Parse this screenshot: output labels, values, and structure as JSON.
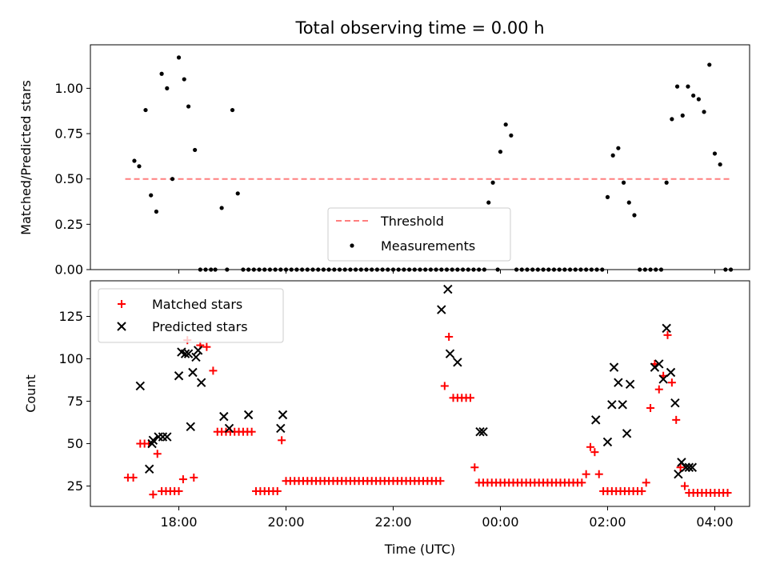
{
  "chart_data": [
    {
      "type": "scatter",
      "panel": "top",
      "title": "Total observing time = 0.00 h",
      "xlabel": "",
      "ylabel": "Matched/Predicted stars",
      "ylim": [
        0,
        1.24
      ],
      "yticks": [
        "0.00",
        "0.25",
        "0.50",
        "0.75",
        "1.00"
      ],
      "legend": {
        "placement": "lower-center",
        "entries": [
          "Threshold",
          "Measurements"
        ]
      },
      "threshold": {
        "name": "Threshold",
        "value": 0.5,
        "color": "#ff7f7f",
        "style": "dashed"
      },
      "series": [
        {
          "name": "Measurements",
          "marker": "dot",
          "color": "#000000",
          "x": [
            -0.83,
            -0.74,
            -0.62,
            -0.52,
            -0.42,
            -0.32,
            -0.22,
            -0.12,
            0.0,
            0.1,
            0.18,
            0.3,
            0.4,
            0.5,
            0.6,
            0.68,
            0.8,
            0.9,
            1.0,
            1.1,
            1.2,
            1.3,
            1.4,
            1.5,
            1.6,
            1.7,
            1.8,
            1.9,
            2.0,
            2.1,
            2.2,
            2.3,
            2.4,
            2.5,
            2.6,
            2.7,
            2.8,
            2.9,
            3.0,
            3.1,
            3.2,
            3.3,
            3.4,
            3.5,
            3.6,
            3.7,
            3.8,
            3.9,
            4.0,
            4.1,
            4.2,
            4.3,
            4.4,
            4.5,
            4.6,
            4.7,
            4.8,
            4.9,
            5.0,
            5.1,
            5.2,
            5.3,
            5.4,
            5.5,
            5.6,
            5.7,
            5.78,
            5.86,
            5.95,
            6.0,
            6.1,
            6.2,
            6.3,
            6.4,
            6.5,
            6.6,
            6.7,
            6.8,
            6.9,
            7.0,
            7.1,
            7.2,
            7.3,
            7.4,
            7.5,
            7.6,
            7.7,
            7.8,
            7.9,
            8.0,
            8.1,
            8.2,
            8.3,
            8.4,
            8.5,
            8.6,
            8.7,
            8.8,
            8.9,
            9.0,
            9.1,
            9.2,
            9.3,
            9.4,
            9.5,
            9.6,
            9.7,
            9.8,
            9.9,
            10.0,
            10.1,
            10.2,
            10.3
          ],
          "y": [
            0.6,
            0.57,
            0.88,
            0.41,
            0.32,
            1.08,
            1.0,
            0.5,
            1.17,
            1.05,
            0.9,
            0.66,
            0.0,
            0.0,
            0.0,
            0.0,
            0.34,
            0.0,
            0.88,
            0.42,
            0.0,
            0.0,
            0.0,
            0.0,
            0.0,
            0.0,
            0.0,
            0.0,
            0.0,
            0.0,
            0.0,
            0.0,
            0.0,
            0.0,
            0.0,
            0.0,
            0.0,
            0.0,
            0.0,
            0.0,
            0.0,
            0.0,
            0.0,
            0.0,
            0.0,
            0.0,
            0.0,
            0.0,
            0.0,
            0.0,
            0.0,
            0.0,
            0.0,
            0.0,
            0.0,
            0.0,
            0.0,
            0.0,
            0.0,
            0.0,
            0.0,
            0.0,
            0.0,
            0.0,
            0.0,
            0.0,
            0.37,
            0.48,
            0.0,
            0.65,
            0.8,
            0.74,
            0.0,
            0.0,
            0.0,
            0.0,
            0.0,
            0.0,
            0.0,
            0.0,
            0.0,
            0.0,
            0.0,
            0.0,
            0.0,
            0.0,
            0.0,
            0.0,
            0.0,
            0.4,
            0.63,
            0.67,
            0.48,
            0.37,
            0.3,
            0.0,
            0.0,
            0.0,
            0.0,
            0.0,
            0.48,
            0.83,
            1.01,
            0.85,
            1.01,
            0.96,
            0.94,
            0.87,
            1.13,
            0.64,
            0.58,
            0.0,
            0.0
          ]
        }
      ]
    },
    {
      "type": "scatter",
      "panel": "bottom",
      "title": "",
      "xlabel": "Time (UTC)",
      "ylabel": "Count",
      "ylim": [
        13,
        146
      ],
      "yticks": [
        "25",
        "50",
        "75",
        "100",
        "125"
      ],
      "xlim": [
        -1.65,
        10.65
      ],
      "xticks": [
        "18:00",
        "20:00",
        "22:00",
        "00:00",
        "02:00",
        "04:00"
      ],
      "legend": {
        "placement": "top-left",
        "entries": [
          "Matched stars",
          "Predicted stars"
        ]
      },
      "series": [
        {
          "name": "Matched stars",
          "marker": "plus",
          "color": "#ff0000",
          "x": [
            -0.95,
            -0.85,
            -0.72,
            -0.64,
            -0.56,
            -0.48,
            -0.4,
            -0.32,
            -0.24,
            -0.16,
            -0.08,
            0.0,
            0.08,
            0.16,
            0.28,
            0.4,
            0.52,
            0.64,
            0.72,
            0.8,
            0.88,
            0.96,
            1.04,
            1.12,
            1.2,
            1.28,
            1.36,
            1.44,
            1.52,
            1.6,
            1.68,
            1.76,
            1.84,
            1.92,
            2.0,
            2.08,
            2.16,
            2.24,
            2.32,
            2.4,
            2.48,
            2.56,
            2.64,
            2.72,
            2.8,
            2.88,
            2.96,
            3.04,
            3.12,
            3.2,
            3.28,
            3.36,
            3.44,
            3.52,
            3.6,
            3.68,
            3.76,
            3.84,
            3.92,
            4.0,
            4.08,
            4.16,
            4.24,
            4.32,
            4.4,
            4.48,
            4.56,
            4.64,
            4.72,
            4.8,
            4.88,
            4.96,
            5.04,
            5.12,
            5.2,
            5.28,
            5.36,
            5.44,
            5.52,
            5.6,
            5.68,
            5.76,
            5.84,
            5.92,
            6.0,
            6.08,
            6.16,
            6.24,
            6.32,
            6.4,
            6.48,
            6.56,
            6.64,
            6.72,
            6.8,
            6.88,
            6.96,
            7.04,
            7.12,
            7.2,
            7.28,
            7.36,
            7.44,
            7.52,
            7.6,
            7.68,
            7.76,
            7.84,
            7.92,
            8.0,
            8.08,
            8.16,
            8.24,
            8.32,
            8.4,
            8.48,
            8.56,
            8.64,
            8.72,
            8.8,
            8.88,
            8.96,
            9.04,
            9.12,
            9.2,
            9.28,
            9.36,
            9.44,
            9.52,
            9.6,
            9.68,
            9.76,
            9.84,
            9.92,
            10.0,
            10.08,
            10.16,
            10.24
          ],
          "y": [
            30,
            30,
            50,
            50,
            50,
            20,
            44,
            22,
            22,
            22,
            22,
            22,
            29,
            111,
            30,
            108,
            107,
            93,
            57,
            57,
            57,
            57,
            57,
            57,
            57,
            57,
            57,
            22,
            22,
            22,
            22,
            22,
            22,
            52,
            28,
            28,
            28,
            28,
            28,
            28,
            28,
            28,
            28,
            28,
            28,
            28,
            28,
            28,
            28,
            28,
            28,
            28,
            28,
            28,
            28,
            28,
            28,
            28,
            28,
            28,
            28,
            28,
            28,
            28,
            28,
            28,
            28,
            28,
            28,
            28,
            28,
            84,
            113,
            77,
            77,
            77,
            77,
            77,
            36,
            27,
            27,
            27,
            27,
            27,
            27,
            27,
            27,
            27,
            27,
            27,
            27,
            27,
            27,
            27,
            27,
            27,
            27,
            27,
            27,
            27,
            27,
            27,
            27,
            27,
            32,
            48,
            45,
            32,
            22,
            22,
            22,
            22,
            22,
            22,
            22,
            22,
            22,
            22,
            27,
            71,
            97,
            82,
            90,
            114,
            86,
            64,
            36,
            25,
            21,
            21,
            21,
            21,
            21,
            21,
            21,
            21,
            21,
            21
          ]
        },
        {
          "name": "Predicted stars",
          "marker": "x",
          "color": "#000000",
          "x": [
            -0.55,
            -0.5,
            -0.38,
            -0.3,
            -0.22,
            0.0,
            0.05,
            0.12,
            0.18,
            0.22,
            0.26,
            0.32,
            0.36,
            0.42,
            0.84,
            0.94,
            -0.72,
            -0.48,
            1.3,
            1.9,
            1.94,
            4.9,
            5.02,
            5.06,
            5.2,
            5.62,
            5.68,
            7.78,
            8.0,
            8.08,
            8.12,
            8.2,
            8.28,
            8.36,
            8.42,
            8.88,
            8.96,
            9.04,
            9.1,
            9.18,
            9.26,
            9.32,
            9.38,
            9.46,
            9.52,
            9.58
          ],
          "y": [
            35,
            50,
            54,
            54,
            54,
            90,
            104,
            103,
            103,
            60,
            92,
            101,
            105,
            86,
            66,
            59,
            84,
            52,
            67,
            59,
            67,
            129,
            141,
            103,
            98,
            57,
            57,
            64,
            51,
            73,
            95,
            86,
            73,
            56,
            85,
            95,
            97,
            88,
            118,
            92,
            74,
            32,
            39,
            36,
            36,
            36
          ]
        }
      ]
    }
  ]
}
